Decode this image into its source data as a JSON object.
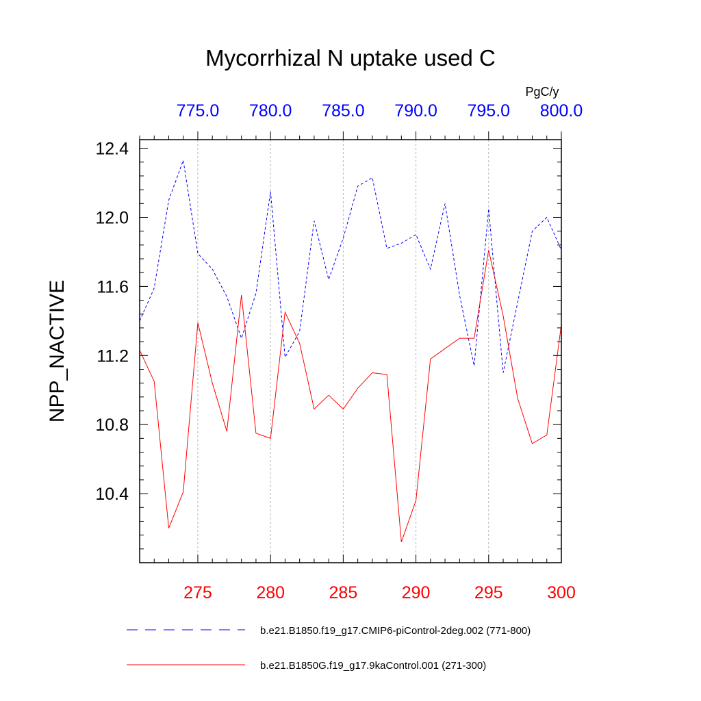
{
  "chart_data": {
    "type": "line",
    "title": "Mycorrhizal N uptake used C",
    "ylabel": "NPP_NACTIVE",
    "top_axis_units": "PgC/y",
    "ylim": [
      10.0,
      12.45
    ],
    "yticks": [
      10.4,
      10.8,
      11.2,
      11.6,
      12.0,
      12.4
    ],
    "ytick_labels": [
      "10.4",
      "10.8",
      "11.2",
      "11.6",
      "12.0",
      "12.4"
    ],
    "bottom_axis": {
      "range": [
        271,
        300
      ],
      "ticks": [
        275,
        280,
        285,
        290,
        295,
        300
      ],
      "tick_labels": [
        "275",
        "280",
        "285",
        "290",
        "295",
        "300"
      ],
      "color": "#ff0000"
    },
    "top_axis": {
      "range": [
        771,
        800
      ],
      "ticks": [
        775,
        780,
        785,
        790,
        795,
        800
      ],
      "tick_labels": [
        "775.0",
        "780.0",
        "785.0",
        "790.0",
        "795.0",
        "800.0"
      ],
      "color": "#0000ff"
    },
    "series": [
      {
        "name": "b.e21.B1850.f19_g17.CMIP6-piControl-2deg.002 (771-800)",
        "axis": "top",
        "color": "#0000ff",
        "dash": "dashed",
        "x": [
          771,
          772,
          773,
          774,
          775,
          776,
          777,
          778,
          779,
          780,
          781,
          782,
          783,
          784,
          785,
          786,
          787,
          788,
          789,
          790,
          791,
          792,
          793,
          794,
          795,
          796,
          797,
          798,
          799,
          800
        ],
        "values": [
          11.4,
          11.59,
          12.1,
          12.33,
          11.79,
          11.7,
          11.54,
          11.3,
          11.56,
          12.15,
          11.19,
          11.34,
          11.98,
          11.64,
          11.88,
          12.18,
          12.23,
          11.82,
          11.85,
          11.9,
          11.7,
          12.08,
          11.55,
          11.14,
          12.05,
          11.1,
          11.51,
          11.92,
          12.0,
          11.81
        ]
      },
      {
        "name": "b.e21.B1850G.f19_g17.9kaControl.001 (271-300)",
        "axis": "bottom",
        "color": "#ff0000",
        "dash": "solid",
        "x": [
          271,
          272,
          273,
          274,
          275,
          276,
          277,
          278,
          279,
          280,
          281,
          282,
          283,
          284,
          285,
          286,
          287,
          288,
          289,
          290,
          291,
          292,
          293,
          294,
          295,
          296,
          297,
          298,
          299,
          300
        ],
        "values": [
          11.23,
          11.05,
          10.2,
          10.41,
          11.39,
          11.04,
          10.76,
          11.55,
          10.75,
          10.72,
          11.45,
          11.27,
          10.89,
          10.97,
          10.89,
          11.01,
          11.1,
          11.09,
          10.12,
          10.36,
          11.18,
          11.24,
          11.3,
          11.3,
          11.81,
          11.43,
          10.95,
          10.69,
          10.74,
          11.38
        ]
      }
    ]
  }
}
